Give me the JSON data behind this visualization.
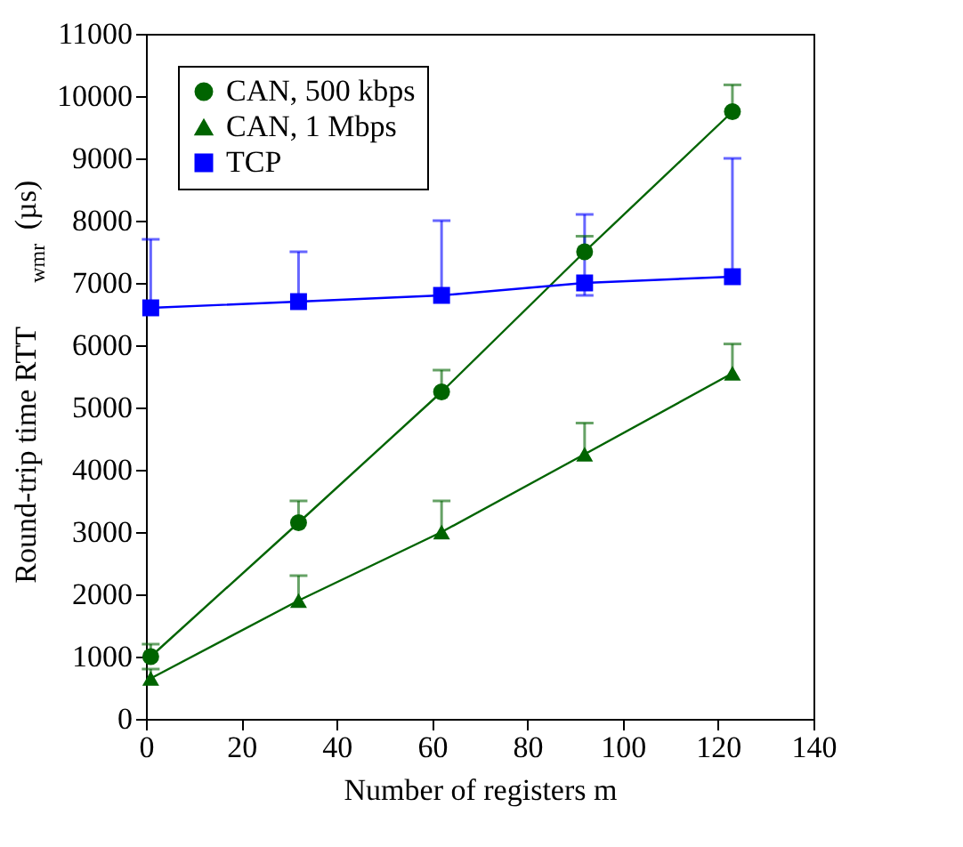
{
  "chart_data": {
    "type": "line",
    "xlabel": "Number of registers m",
    "ylabel": "Round-trip time RTT$_{wmr}$ (µs)",
    "x": [
      1,
      32,
      62,
      92,
      123
    ],
    "series": [
      {
        "name": "CAN, 500 kbps",
        "color": "#006400",
        "marker": "circle",
        "values": [
          1000,
          3150,
          5250,
          7500,
          9750
        ],
        "errors": [
          [
            1000,
            1200
          ],
          [
            3150,
            3500
          ],
          [
            5250,
            5600
          ],
          [
            7500,
            7750
          ],
          [
            9750,
            10180
          ]
        ]
      },
      {
        "name": "CAN, 1 Mbps",
        "color": "#006400",
        "marker": "triangle",
        "values": [
          650,
          1900,
          3000,
          4250,
          5550
        ],
        "errors": [
          [
            650,
            800
          ],
          [
            1900,
            2300
          ],
          [
            3000,
            3500
          ],
          [
            4250,
            4750
          ],
          [
            5550,
            6020
          ]
        ]
      },
      {
        "name": "TCP",
        "color": "#0000ff",
        "marker": "square",
        "values": [
          6600,
          6700,
          6800,
          7000,
          7100
        ],
        "errors": [
          [
            6600,
            7700
          ],
          [
            6700,
            7500
          ],
          [
            6800,
            8000
          ],
          [
            6800,
            8100
          ],
          [
            7100,
            9000
          ]
        ]
      }
    ],
    "xlim": [
      0,
      140
    ],
    "xticks": [
      0,
      20,
      40,
      60,
      80,
      100,
      120,
      140
    ],
    "ylim": [
      0,
      11000
    ],
    "yticks": [
      0,
      1000,
      2000,
      3000,
      4000,
      5000,
      6000,
      7000,
      8000,
      9000,
      10000,
      11000
    ],
    "grid": false,
    "legend": "top left",
    "line_style": "solid"
  }
}
